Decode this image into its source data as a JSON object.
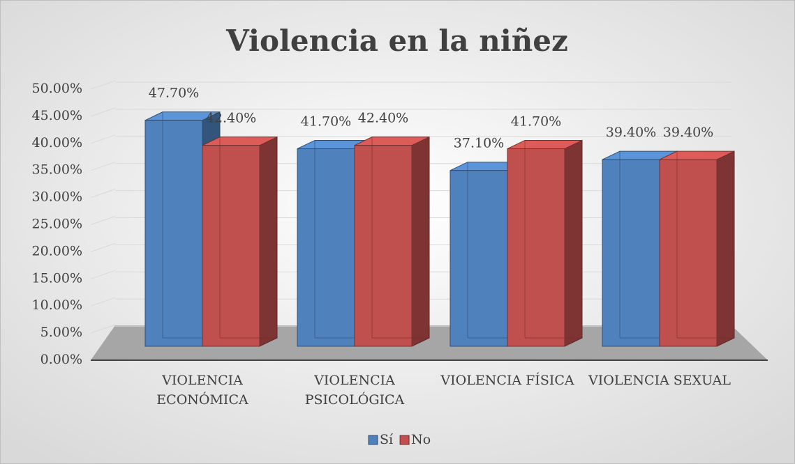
{
  "chart_data": {
    "type": "bar",
    "title": "Violencia en la niñez",
    "categories": [
      "VIOLENCIA ECONÓMICA",
      "VIOLENCIA PSICOLÓGICA",
      "VIOLENCIA FÍSICA",
      "VIOLENCIA SEXUAL"
    ],
    "series": [
      {
        "name": "Sí",
        "color": "#4f81bd",
        "values": [
          47.7,
          41.7,
          37.1,
          39.4
        ],
        "value_labels": [
          "47.70%",
          "41.70%",
          "37.10%",
          "39.40%"
        ]
      },
      {
        "name": "No",
        "color": "#c0504d",
        "values": [
          42.4,
          42.4,
          41.7,
          39.4
        ],
        "value_labels": [
          "42.40%",
          "42.40%",
          "41.70%",
          "39.40%"
        ]
      }
    ],
    "ylim": [
      0,
      50
    ],
    "yticks": [
      {
        "value": 0,
        "label": "0.00%"
      },
      {
        "value": 5,
        "label": "5.00%"
      },
      {
        "value": 10,
        "label": "10.00%"
      },
      {
        "value": 15,
        "label": "15.00%"
      },
      {
        "value": 20,
        "label": "20.00%"
      },
      {
        "value": 25,
        "label": "25.00%"
      },
      {
        "value": 30,
        "label": "30.00%"
      },
      {
        "value": 35,
        "label": "35.00%"
      },
      {
        "value": 40,
        "label": "40.00%"
      },
      {
        "value": 45,
        "label": "45.00%"
      },
      {
        "value": 50,
        "label": "50.00%"
      }
    ],
    "grid": true,
    "legend": "bottom"
  }
}
